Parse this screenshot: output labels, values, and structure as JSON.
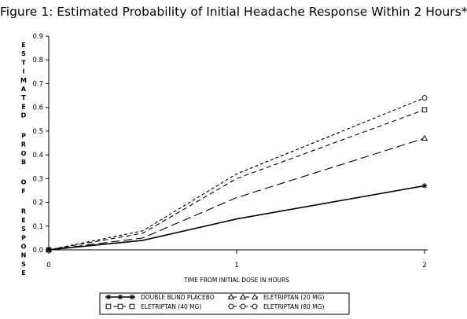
{
  "chart_data": {
    "type": "line",
    "title": "Figure 1: Estimated Probability of Initial Headache Response Within 2 Hours*",
    "xlabel": "TIME FROM INITIAL DOSE IN HOURS",
    "ylabel": "ESTIMATED PROB OF RESPONSE",
    "xlim": [
      0,
      2
    ],
    "ylim": [
      0,
      0.9
    ],
    "x_ticks": [
      "0",
      "1",
      "2"
    ],
    "y_ticks": [
      "0.0",
      "0.1",
      "0.2",
      "0.3",
      "0.4",
      "0.5",
      "0.6",
      "0.7",
      "0.8",
      "0.9"
    ],
    "grid": false,
    "legend_position": "bottom",
    "series": [
      {
        "name": "DOUBLE BLIND PLACEBO",
        "style": "solid",
        "marker": "star",
        "x": [
          0,
          0.5,
          1,
          2
        ],
        "y": [
          0.0,
          0.04,
          0.13,
          0.27
        ]
      },
      {
        "name": "ELETRIPTAN (20 MG)",
        "style": "long-dash",
        "marker": "triangle",
        "x": [
          0,
          0.5,
          1,
          2
        ],
        "y": [
          0.0,
          0.05,
          0.22,
          0.47
        ]
      },
      {
        "name": "ELETRIPTAN (40 MG)",
        "style": "medium-dash",
        "marker": "square",
        "x": [
          0,
          0.5,
          1,
          2
        ],
        "y": [
          0.0,
          0.07,
          0.3,
          0.59
        ]
      },
      {
        "name": "ELETRIPTAN (80 MG)",
        "style": "short-dash",
        "marker": "circle",
        "x": [
          0,
          0.5,
          1,
          2
        ],
        "y": [
          0.0,
          0.08,
          0.32,
          0.64
        ]
      }
    ]
  }
}
